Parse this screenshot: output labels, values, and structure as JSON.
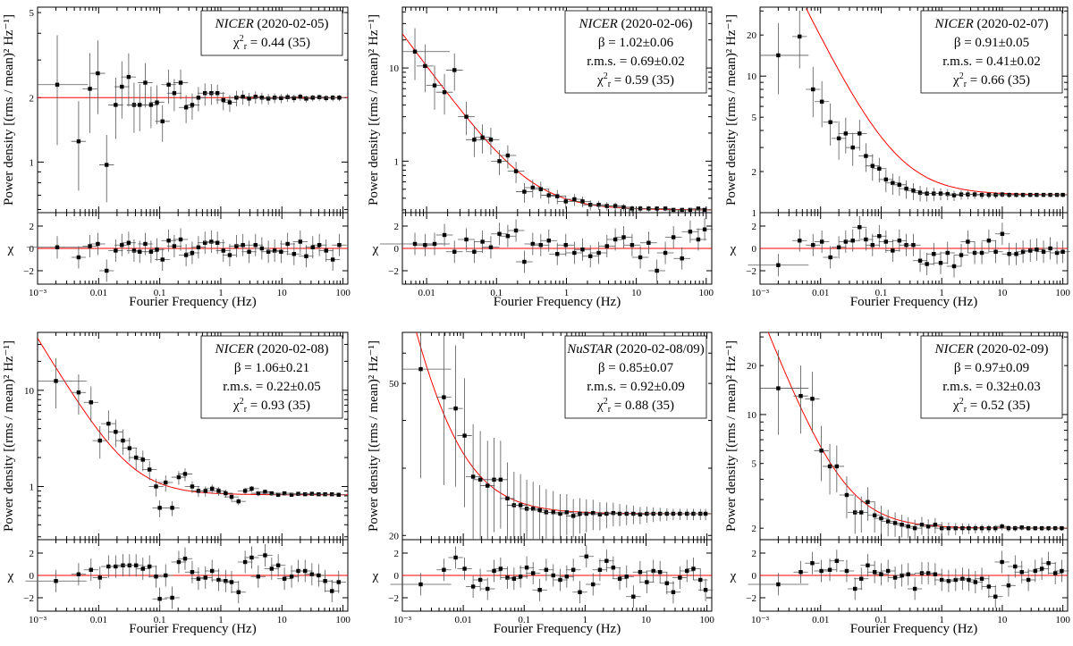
{
  "figure": {
    "xlabel": "Fourier Frequency (Hz)",
    "ylabel": "Power density [(rms / mean)² Hz⁻¹]",
    "residual_label": "χ",
    "residual_ticks": [
      -2,
      0,
      2
    ],
    "residual_ylim": [
      -3.2,
      3.2
    ],
    "colors": {
      "model": "#ff0000",
      "data": "#000000",
      "frame": "#000000"
    }
  },
  "chart_data": [
    {
      "type": "scatter",
      "mission": "NICER",
      "date": "(2020-02-05)",
      "stats": [],
      "chi2": "0.44 (35)",
      "xlim": [
        0.001,
        120
      ],
      "ylim": [
        0.58,
        5.3
      ],
      "xticks": [
        "10⁻³",
        "0.01",
        "0.1",
        "1",
        "10",
        "100"
      ],
      "yticks": [
        1,
        2,
        5
      ],
      "model": {
        "kind": "const",
        "c": 2.0
      },
      "points": [
        [
          0.0021,
          2.3
        ],
        [
          0.0047,
          1.25
        ],
        [
          0.0072,
          2.2
        ],
        [
          0.0097,
          2.6
        ],
        [
          0.0135,
          0.97
        ],
        [
          0.019,
          1.85
        ],
        [
          0.024,
          2.25
        ],
        [
          0.031,
          2.5
        ],
        [
          0.038,
          1.85
        ],
        [
          0.047,
          1.85
        ],
        [
          0.058,
          2.35
        ],
        [
          0.072,
          1.85
        ],
        [
          0.09,
          1.9
        ],
        [
          0.111,
          1.55
        ],
        [
          0.14,
          2.3
        ],
        [
          0.173,
          2.1
        ],
        [
          0.22,
          2.35
        ],
        [
          0.27,
          1.8
        ],
        [
          0.34,
          1.85
        ],
        [
          0.43,
          2.0
        ],
        [
          0.55,
          2.1
        ],
        [
          0.7,
          2.1
        ],
        [
          0.88,
          2.1
        ],
        [
          1.1,
          1.95
        ],
        [
          1.4,
          1.9
        ],
        [
          1.8,
          2.0
        ],
        [
          2.3,
          2.02
        ],
        [
          2.9,
          1.98
        ],
        [
          3.7,
          2.02
        ],
        [
          4.7,
          2.0
        ],
        [
          6,
          1.98
        ],
        [
          7.6,
          2.0
        ],
        [
          9.7,
          1.99
        ],
        [
          12.4,
          2.01
        ],
        [
          15.8,
          1.99
        ],
        [
          20,
          2.02
        ],
        [
          25,
          1.98
        ],
        [
          32,
          2.0
        ],
        [
          41,
          2.01
        ],
        [
          53,
          1.99
        ],
        [
          68,
          2.0
        ],
        [
          87,
          2.0
        ]
      ],
      "resid": [
        0.1,
        -0.8,
        0.2,
        0.4,
        -2.0,
        -0.2,
        0.3,
        0.5,
        -0.2,
        -0.3,
        0.4,
        -0.3,
        -0.1,
        -1.0,
        0.7,
        0.2,
        0.8,
        -0.6,
        -0.4,
        0.1,
        0.5,
        0.6,
        0.5,
        -0.2,
        -0.6,
        0.2,
        0.3,
        -0.3,
        0.3,
        0.0,
        -0.3,
        -0.2,
        -0.3,
        0.4,
        -0.5,
        0.6,
        -0.7,
        0.1,
        0.3,
        -0.2,
        -1.0,
        0.3
      ]
    },
    {
      "type": "scatter",
      "mission": "NICER",
      "date": "(2020-02-06)",
      "stats": [
        "β = 1.02±0.06",
        "r.m.s. = 0.69±0.02"
      ],
      "chi2": "0.59 (35)",
      "xlim": [
        0.0045,
        120
      ],
      "ylim": [
        0.28,
        45
      ],
      "xticks": [
        "0.01",
        "0.1",
        "1",
        "10",
        "100"
      ],
      "yticks": [
        1,
        10
      ],
      "model": {
        "kind": "pow",
        "A": 0.093,
        "beta": 1.02,
        "c": 0.3
      },
      "points": [
        [
          0.0068,
          15
        ],
        [
          0.0095,
          10.5
        ],
        [
          0.013,
          6.5
        ],
        [
          0.018,
          5.5
        ],
        [
          0.025,
          9.5
        ],
        [
          0.037,
          3.0
        ],
        [
          0.048,
          1.7
        ],
        [
          0.063,
          1.8
        ],
        [
          0.083,
          1.7
        ],
        [
          0.11,
          1.0
        ],
        [
          0.145,
          1.15
        ],
        [
          0.19,
          0.78
        ],
        [
          0.25,
          0.47
        ],
        [
          0.33,
          0.52
        ],
        [
          0.43,
          0.5
        ],
        [
          0.56,
          0.43
        ],
        [
          0.74,
          0.42
        ],
        [
          0.98,
          0.37
        ],
        [
          1.3,
          0.39
        ],
        [
          1.7,
          0.37
        ],
        [
          2.2,
          0.34
        ],
        [
          2.9,
          0.34
        ],
        [
          3.8,
          0.33
        ],
        [
          5,
          0.33
        ],
        [
          6.6,
          0.32
        ],
        [
          8.7,
          0.31
        ],
        [
          11.4,
          0.31
        ],
        [
          15,
          0.31
        ],
        [
          19.7,
          0.31
        ],
        [
          26,
          0.31
        ],
        [
          34,
          0.3
        ],
        [
          45,
          0.3
        ],
        [
          59,
          0.3
        ],
        [
          77,
          0.31
        ],
        [
          95,
          0.3
        ]
      ],
      "resid": [
        0.4,
        0.3,
        0.4,
        1.2,
        -0.3,
        0.8,
        -0.3,
        0.6,
        0.1,
        1.3,
        1.1,
        1.6,
        -1.2,
        0.4,
        0.3,
        0.7,
        -0.5,
        0.3,
        -0.4,
        -0.1,
        -0.7,
        -0.4,
        0.2,
        0.8,
        1.0,
        0.3,
        -0.8,
        0.5,
        -2.0,
        -0.4,
        1.0,
        -0.9,
        1.5,
        0.8,
        1.7
      ]
    },
    {
      "type": "scatter",
      "mission": "NICER",
      "date": "(2020-02-07)",
      "stats": [
        "β = 0.91±0.05",
        "r.m.s. = 0.41±0.02"
      ],
      "chi2": "0.66 (35)",
      "xlim": [
        0.001,
        120
      ],
      "ylim": [
        1.0,
        32
      ],
      "xticks": [
        "10⁻³",
        "0.01",
        "0.1",
        "1",
        "10",
        "100"
      ],
      "yticks": [
        1,
        2,
        5,
        10,
        20
      ],
      "model": {
        "kind": "pow",
        "A": 0.275,
        "beta": 0.91,
        "c": 1.35
      },
      "points": [
        [
          0.002,
          14.2
        ],
        [
          0.0045,
          19.5
        ],
        [
          0.0075,
          8.0
        ],
        [
          0.0105,
          6.5
        ],
        [
          0.0145,
          4.6
        ],
        [
          0.02,
          3.5
        ],
        [
          0.026,
          3.8
        ],
        [
          0.034,
          3.0
        ],
        [
          0.044,
          3.8
        ],
        [
          0.056,
          2.6
        ],
        [
          0.072,
          2.2
        ],
        [
          0.093,
          2.1
        ],
        [
          0.12,
          1.75
        ],
        [
          0.155,
          1.65
        ],
        [
          0.2,
          1.6
        ],
        [
          0.26,
          1.5
        ],
        [
          0.34,
          1.45
        ],
        [
          0.44,
          1.4
        ],
        [
          0.57,
          1.38
        ],
        [
          0.74,
          1.38
        ],
        [
          0.96,
          1.38
        ],
        [
          1.25,
          1.37
        ],
        [
          1.6,
          1.34
        ],
        [
          2.1,
          1.36
        ],
        [
          2.7,
          1.36
        ],
        [
          3.5,
          1.36
        ],
        [
          4.6,
          1.35
        ],
        [
          6,
          1.35
        ],
        [
          7.8,
          1.35
        ],
        [
          10,
          1.36
        ],
        [
          13,
          1.35
        ],
        [
          17,
          1.35
        ],
        [
          22,
          1.35
        ],
        [
          29,
          1.35
        ],
        [
          37,
          1.35
        ],
        [
          48,
          1.35
        ],
        [
          62,
          1.35
        ],
        [
          80,
          1.35
        ],
        [
          100,
          1.35
        ]
      ],
      "resid": [
        -1.5,
        0.7,
        0.3,
        0.6,
        -0.8,
        0.1,
        0.6,
        0.7,
        1.9,
        0.8,
        0.3,
        1.1,
        0.6,
        -0.2,
        0.7,
        0.3,
        0.3,
        -1.1,
        -1.4,
        -0.5,
        -1.3,
        -0.4,
        -1.6,
        -0.6,
        0.6,
        -0.4,
        -0.4,
        0.7,
        -0.3,
        1.3,
        -0.5,
        -0.5,
        -0.3,
        -0.2,
        -0.1,
        -0.3,
        0.0,
        -0.4,
        -0.3
      ]
    },
    {
      "type": "scatter",
      "mission": "NICER",
      "date": "(2020-02-08)",
      "stats": [
        "β = 1.06±0.21",
        "r.m.s. = 0.22±0.05"
      ],
      "chi2": "0.93 (35)",
      "xlim": [
        0.001,
        120
      ],
      "ylim": [
        0.28,
        40
      ],
      "xticks": [
        "10⁻³",
        "0.01",
        "0.1",
        "1",
        "10",
        "100"
      ],
      "yticks": [
        1,
        10
      ],
      "model": {
        "kind": "pow",
        "A": 0.0225,
        "beta": 1.06,
        "c": 0.82
      },
      "points": [
        [
          0.002,
          12.5
        ],
        [
          0.0047,
          9.5
        ],
        [
          0.0075,
          7.5
        ],
        [
          0.0105,
          3.0
        ],
        [
          0.0145,
          4.5
        ],
        [
          0.019,
          3.7
        ],
        [
          0.025,
          3.0
        ],
        [
          0.032,
          2.5
        ],
        [
          0.041,
          2.0
        ],
        [
          0.053,
          1.9
        ],
        [
          0.068,
          1.5
        ],
        [
          0.087,
          1.0
        ],
        [
          0.1,
          0.6
        ],
        [
          0.125,
          1.1
        ],
        [
          0.16,
          0.6
        ],
        [
          0.205,
          1.25
        ],
        [
          0.26,
          1.35
        ],
        [
          0.34,
          1.0
        ],
        [
          0.43,
          0.9
        ],
        [
          0.56,
          0.9
        ],
        [
          0.72,
          0.95
        ],
        [
          0.92,
          0.9
        ],
        [
          1.2,
          0.85
        ],
        [
          1.5,
          0.78
        ],
        [
          1.95,
          0.7
        ],
        [
          2.5,
          0.9
        ],
        [
          3.2,
          0.95
        ],
        [
          4.1,
          0.85
        ],
        [
          5.3,
          0.88
        ],
        [
          6.8,
          0.85
        ],
        [
          8.7,
          0.82
        ],
        [
          11,
          0.85
        ],
        [
          14.4,
          0.82
        ],
        [
          18.5,
          0.84
        ],
        [
          24,
          0.83
        ],
        [
          31,
          0.84
        ],
        [
          40,
          0.83
        ],
        [
          51,
          0.83
        ],
        [
          66,
          0.83
        ],
        [
          85,
          0.82
        ]
      ],
      "resid": [
        -0.5,
        0.1,
        0.5,
        -0.2,
        0.8,
        0.8,
        0.9,
        0.9,
        0.9,
        0.6,
        0.8,
        -0.1,
        -2.1,
        0.0,
        -2.0,
        1.2,
        1.5,
        0.3,
        -0.3,
        -0.2,
        0.4,
        -0.4,
        -0.5,
        -0.6,
        -1.5,
        1.2,
        1.6,
        -0.1,
        1.8,
        0.6,
        0.9,
        -0.3,
        -0.1,
        0.4,
        0.4,
        0.1,
        0.0,
        -0.5,
        -1.4,
        -0.6
      ]
    },
    {
      "type": "scatter",
      "mission": "NuSTAR",
      "date": "(2020-02-08/09)",
      "stats": [
        "β = 0.85±0.07",
        "r.m.s. = 0.92±0.09"
      ],
      "chi2": "0.88 (35)",
      "xlim": [
        0.001,
        120
      ],
      "ylim": [
        19.5,
        68
      ],
      "xticks": [
        "10⁻³",
        "0.01",
        "0.1",
        "1",
        "10",
        "100"
      ],
      "yticks": [
        20,
        50
      ],
      "model": {
        "kind": "pow",
        "A": 0.2,
        "beta": 0.85,
        "c": 22.8
      },
      "points": [
        [
          0.002,
          54.5
        ],
        [
          0.0048,
          46.0
        ],
        [
          0.0075,
          43.0
        ],
        [
          0.0105,
          36.5
        ],
        [
          0.0145,
          28.5
        ],
        [
          0.019,
          28.0
        ],
        [
          0.025,
          27.0
        ],
        [
          0.032,
          28.0
        ],
        [
          0.041,
          28.0
        ],
        [
          0.053,
          25.0
        ],
        [
          0.068,
          24.0
        ],
        [
          0.087,
          24.0
        ],
        [
          0.11,
          23.5
        ],
        [
          0.14,
          23.5
        ],
        [
          0.18,
          23.3
        ],
        [
          0.23,
          23.0
        ],
        [
          0.3,
          23.0
        ],
        [
          0.39,
          22.8
        ],
        [
          0.5,
          23.0
        ],
        [
          0.64,
          22.5
        ],
        [
          0.82,
          22.8
        ],
        [
          1.05,
          22.8
        ],
        [
          1.35,
          22.9
        ],
        [
          1.75,
          22.7
        ],
        [
          2.25,
          22.8
        ],
        [
          2.9,
          22.9
        ],
        [
          3.7,
          22.8
        ],
        [
          4.8,
          22.8
        ],
        [
          6.2,
          22.8
        ],
        [
          8,
          22.7
        ],
        [
          10.3,
          22.8
        ],
        [
          13.2,
          22.8
        ],
        [
          17,
          22.8
        ],
        [
          22,
          22.8
        ],
        [
          28,
          22.8
        ],
        [
          36,
          22.8
        ],
        [
          47,
          22.8
        ],
        [
          60,
          22.8
        ],
        [
          78,
          22.8
        ],
        [
          95,
          22.8
        ]
      ],
      "resid": [
        -0.8,
        0.5,
        1.6,
        0.6,
        -1.0,
        -0.4,
        -1.2,
        0.4,
        0.6,
        -0.2,
        -0.3,
        -0.1,
        0.7,
        0.2,
        -1.3,
        0.5,
        0.0,
        -0.4,
        -0.1,
        0.5,
        -1.5,
        1.7,
        -0.8,
        0.5,
        1.3,
        0.7,
        -0.3,
        -0.1,
        -1.9,
        0.3,
        -0.6,
        0.4,
        0.3,
        -0.7,
        -1.5,
        -0.2,
        0.4,
        0.6,
        -0.4,
        -1.3
      ]
    },
    {
      "type": "scatter",
      "mission": "NICER",
      "date": "(2020-02-09)",
      "stats": [
        "β = 0.97±0.09",
        "r.m.s. = 0.32±0.03"
      ],
      "chi2": "0.52 (35)",
      "xlim": [
        0.001,
        120
      ],
      "ylim": [
        1.7,
        32
      ],
      "xticks": [
        "10⁻³",
        "0.01",
        "0.1",
        "1",
        "10",
        "100"
      ],
      "yticks": [
        2,
        5,
        10,
        20
      ],
      "model": {
        "kind": "pow",
        "A": 0.05,
        "beta": 0.97,
        "c": 2.0
      },
      "points": [
        [
          0.002,
          14.5
        ],
        [
          0.0047,
          13.0
        ],
        [
          0.0073,
          12.5
        ],
        [
          0.0103,
          6.0
        ],
        [
          0.0142,
          4.8
        ],
        [
          0.0185,
          4.8
        ],
        [
          0.027,
          3.2
        ],
        [
          0.037,
          2.5
        ],
        [
          0.047,
          2.5
        ],
        [
          0.06,
          2.9
        ],
        [
          0.078,
          2.4
        ],
        [
          0.1,
          2.3
        ],
        [
          0.13,
          2.2
        ],
        [
          0.17,
          2.15
        ],
        [
          0.22,
          2.1
        ],
        [
          0.28,
          2.05
        ],
        [
          0.36,
          2.0
        ],
        [
          0.47,
          2.1
        ],
        [
          0.6,
          2.05
        ],
        [
          0.78,
          2.1
        ],
        [
          1.0,
          2.0
        ],
        [
          1.3,
          2.0
        ],
        [
          1.7,
          2.0
        ],
        [
          2.2,
          2.0
        ],
        [
          2.8,
          2.0
        ],
        [
          3.6,
          2.0
        ],
        [
          4.6,
          2.0
        ],
        [
          6,
          2.0
        ],
        [
          7.7,
          2.0
        ],
        [
          9.9,
          2.05
        ],
        [
          12.7,
          2.0
        ],
        [
          16.3,
          2.0
        ],
        [
          21,
          2.02
        ],
        [
          27,
          2.0
        ],
        [
          35,
          2.0
        ],
        [
          45,
          2.0
        ],
        [
          58,
          2.0
        ],
        [
          75,
          2.0
        ],
        [
          96,
          2.0
        ]
      ],
      "resid": [
        -0.8,
        0.3,
        1.1,
        0.4,
        0.5,
        1.3,
        0.4,
        -1.2,
        -0.3,
        0.9,
        0.3,
        0.1,
        0.4,
        -0.2,
        0.0,
        0.1,
        -1.2,
        0.2,
        0.2,
        0.1,
        -0.4,
        -0.5,
        -0.4,
        -0.3,
        -0.4,
        -0.6,
        -0.3,
        -1.0,
        -1.9,
        1.2,
        -0.9,
        0.8,
        0.3,
        -0.4,
        0.4,
        0.6,
        1.1,
        0.2,
        0.4
      ]
    }
  ]
}
